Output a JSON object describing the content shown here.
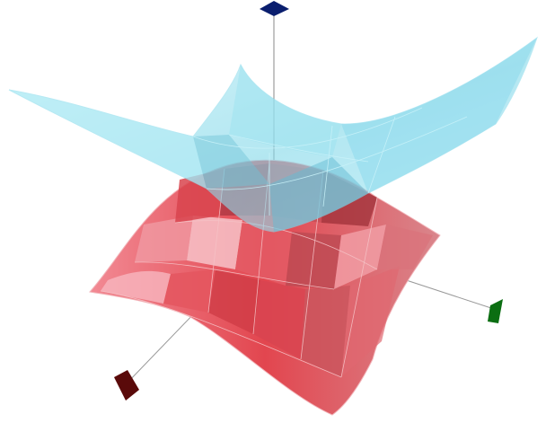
{
  "scene": {
    "background": "#ffffff",
    "axes": [
      {
        "id": "z",
        "color": "#0a1e6e",
        "arrow": "dark-blue"
      },
      {
        "id": "x",
        "color": "#5a0a0a",
        "arrow": "dark-red"
      },
      {
        "id": "y",
        "color": "#0b6e12",
        "arrow": "green"
      }
    ],
    "surfaces": [
      {
        "id": "upper-surface",
        "kind": "paraboloid-bowl",
        "color": "#8fe3f3",
        "opacity": 0.62
      },
      {
        "id": "lower-surface",
        "kind": "saddle-cap",
        "color": "#e8505e",
        "opacity": 0.95
      }
    ]
  }
}
